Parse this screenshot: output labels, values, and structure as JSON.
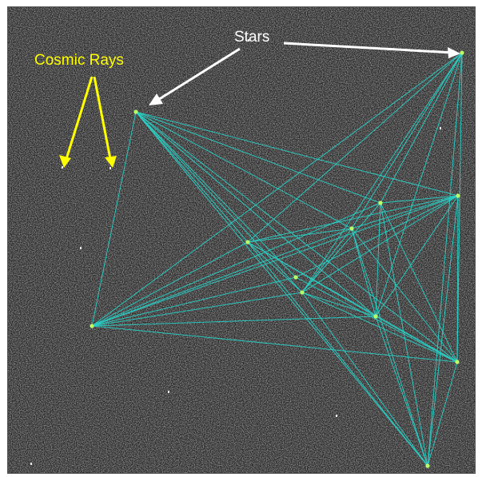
{
  "image": {
    "background_color": "#2b2b2b",
    "line_color": "#27d3c9",
    "star_color": "#b9ff6a"
  },
  "annotations": {
    "stars_label": "Stars",
    "stars_label_color": "#ffffff",
    "cosmic_rays_label": "Cosmic Rays",
    "cosmic_rays_label_color": "#ffff00"
  }
}
